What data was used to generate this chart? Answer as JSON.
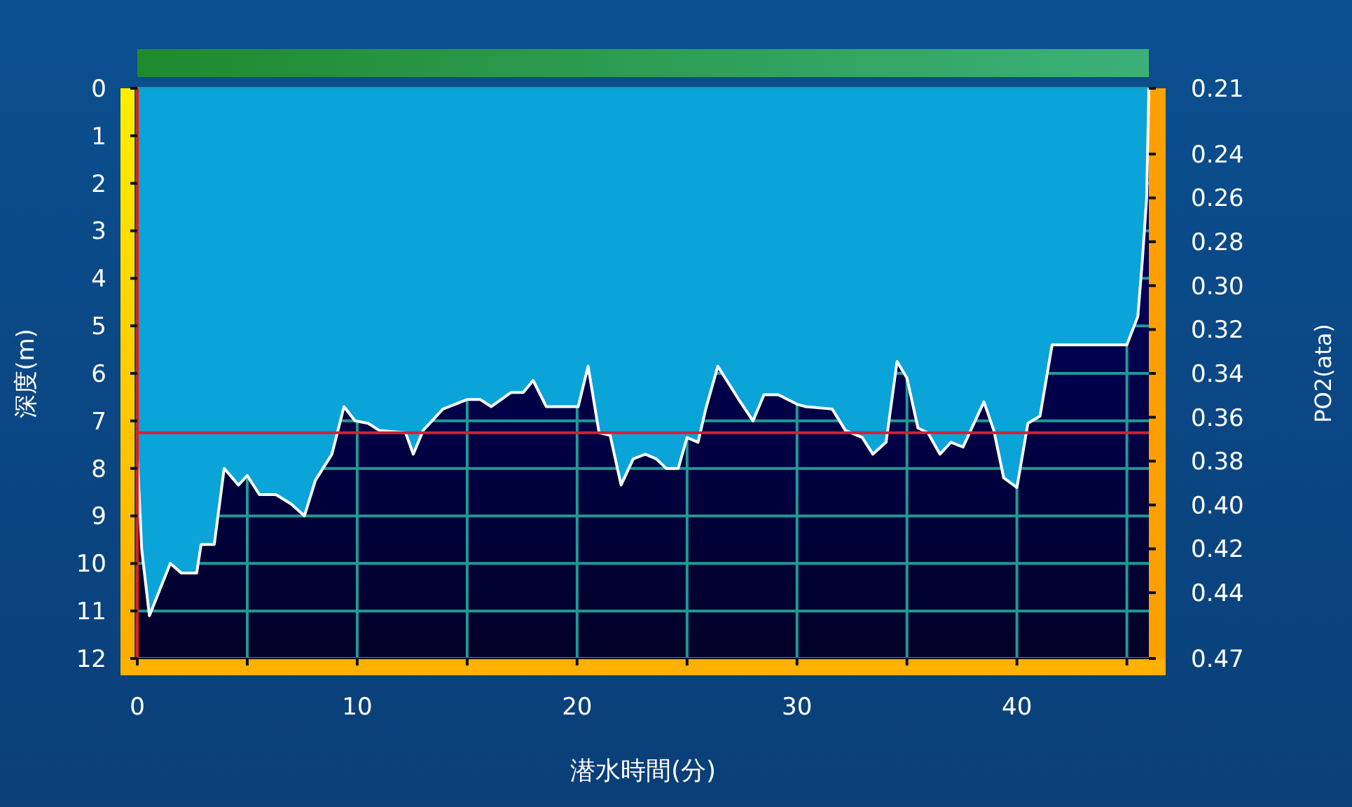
{
  "chart_data": {
    "type": "area",
    "xlabel": "潜水時間(分)",
    "ylabel": "深度(m)",
    "y2label": "PO2(ata)",
    "x": [
      0,
      0.1,
      0.2,
      0.55,
      1.5,
      2.0,
      2.7,
      2.9,
      3.5,
      3.95,
      4.6,
      5.0,
      5.55,
      6.3,
      7.0,
      7.6,
      8.1,
      8.85,
      9.4,
      9.9,
      10.5,
      11.0,
      12.2,
      12.55,
      13.0,
      13.9,
      15.0,
      15.6,
      16.1,
      17.0,
      17.55,
      18.0,
      18.6,
      20.05,
      20.5,
      21.0,
      21.5,
      22.0,
      22.55,
      23.1,
      23.6,
      24.05,
      24.6,
      25.0,
      25.5,
      25.85,
      26.4,
      27.35,
      28.0,
      28.5,
      29.15,
      30.0,
      30.4,
      31.6,
      32.2,
      32.97,
      33.45,
      34.05,
      34.55,
      35.0,
      35.5,
      35.95,
      36.5,
      37.0,
      37.55,
      38.5,
      38.95,
      39.4,
      40.0,
      40.5,
      41.05,
      41.6,
      45.0,
      45.5,
      45.7,
      45.9,
      46.0
    ],
    "series": [
      {
        "color": "#0aa4d8",
        "values": [
          7.8,
          8.7,
          9.7,
          11.1,
          10.0,
          10.2,
          10.2,
          9.6,
          9.6,
          8.0,
          8.35,
          8.15,
          8.55,
          8.55,
          8.75,
          9.0,
          8.25,
          7.7,
          6.7,
          7.0,
          7.05,
          7.2,
          7.25,
          7.7,
          7.2,
          6.75,
          6.55,
          6.55,
          6.7,
          6.4,
          6.4,
          6.15,
          6.7,
          6.7,
          5.85,
          7.25,
          7.3,
          8.35,
          7.8,
          7.7,
          7.8,
          8.0,
          8.0,
          7.35,
          7.45,
          6.75,
          5.85,
          6.55,
          7.0,
          6.45,
          6.45,
          6.65,
          6.7,
          6.75,
          7.2,
          7.35,
          7.7,
          7.45,
          5.75,
          6.1,
          7.15,
          7.25,
          7.7,
          7.45,
          7.55,
          6.6,
          7.2,
          8.2,
          8.4,
          7.05,
          6.9,
          5.4,
          5.4,
          4.8,
          3.65,
          2.3,
          0
        ]
      }
    ],
    "xlim": [
      0,
      46
    ],
    "xticks": [
      0,
      {
        "value": 5,
        "label": null
      },
      10,
      {
        "value": 15,
        "label": null
      },
      20,
      {
        "value": 25,
        "label": null
      },
      30,
      {
        "value": 35,
        "label": null
      },
      40,
      {
        "value": 45,
        "label": null
      }
    ],
    "ylim": [
      12,
      0
    ],
    "yticks": [
      0,
      1,
      2,
      3,
      4,
      5,
      6,
      7,
      8,
      9,
      10,
      11,
      12
    ],
    "y2lim": [
      0.47,
      0.21
    ],
    "y2ticks": [
      0.21,
      0.24,
      0.26,
      0.28,
      {
        "value": 0.3,
        "label": "0.30"
      },
      0.32,
      0.34,
      0.36,
      0.38,
      {
        "value": 0.4,
        "label": "0.40"
      },
      0.42,
      0.44,
      0.47
    ],
    "ref_lines": [
      {
        "axis": "y",
        "value": 7.25,
        "color": "#d0203a"
      }
    ],
    "grid": true
  }
}
